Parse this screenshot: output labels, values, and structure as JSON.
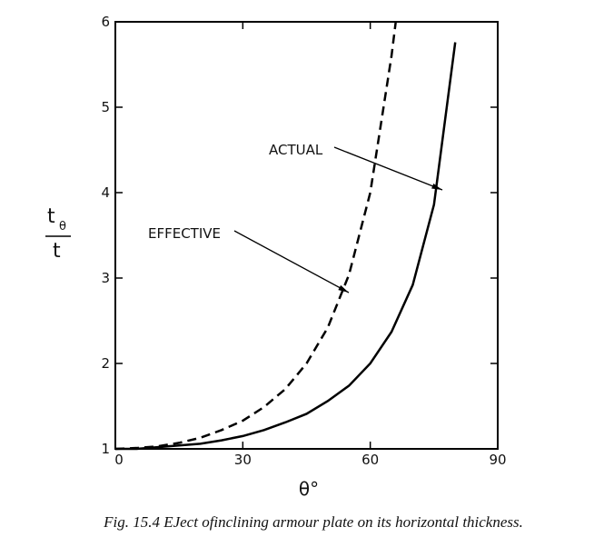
{
  "chart_data": {
    "type": "line",
    "xlabel": "θ°",
    "ylabel_numerator": "t",
    "ylabel_subscript": "θ",
    "ylabel_denominator": "t",
    "caption": "Fig. 15.4 EJect ofinclining armour plate on its horizontal thickness.",
    "xlim": [
      0,
      90
    ],
    "xticks": [
      0,
      30,
      60,
      90
    ],
    "ylim": [
      1,
      6
    ],
    "yticks": [
      1,
      2,
      3,
      4,
      5,
      6
    ],
    "series": [
      {
        "name": "ACTUAL",
        "color": "#000000",
        "dashed": false,
        "x": [
          0,
          5,
          10,
          15,
          20,
          25,
          30,
          35,
          40,
          45,
          50,
          55,
          60,
          65,
          70,
          75,
          80
        ],
        "values": [
          1,
          1.0,
          1.02,
          1.04,
          1.06,
          1.1,
          1.15,
          1.22,
          1.31,
          1.41,
          1.56,
          1.74,
          2.0,
          2.37,
          2.92,
          3.86,
          5.76
        ]
      },
      {
        "name": "EFFECTIVE",
        "color": "#000000",
        "dashed": true,
        "x": [
          0,
          5,
          10,
          15,
          20,
          25,
          30,
          35,
          40,
          45,
          50,
          55,
          60,
          65,
          66
        ],
        "values": [
          1,
          1.01,
          1.03,
          1.07,
          1.13,
          1.22,
          1.33,
          1.49,
          1.7,
          2.0,
          2.42,
          3.04,
          4.0,
          5.6,
          6.0
        ]
      }
    ]
  }
}
